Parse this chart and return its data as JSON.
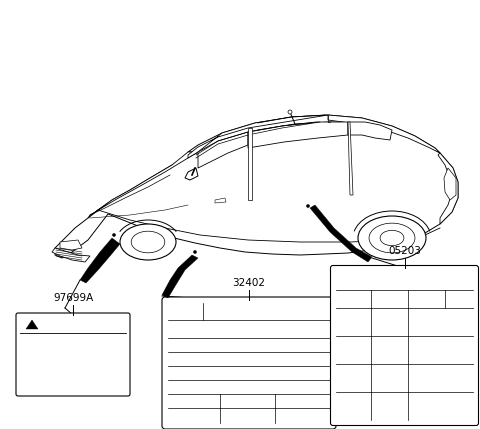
{
  "bg_color": "#ffffff",
  "lc": "#000000",
  "label_97699A": "97699A",
  "label_32402": "32402",
  "label_05203": "05203",
  "figsize": [
    4.8,
    4.29
  ],
  "dpi": 100,
  "xlim": [
    0,
    480
  ],
  "ylim": [
    0,
    429
  ]
}
